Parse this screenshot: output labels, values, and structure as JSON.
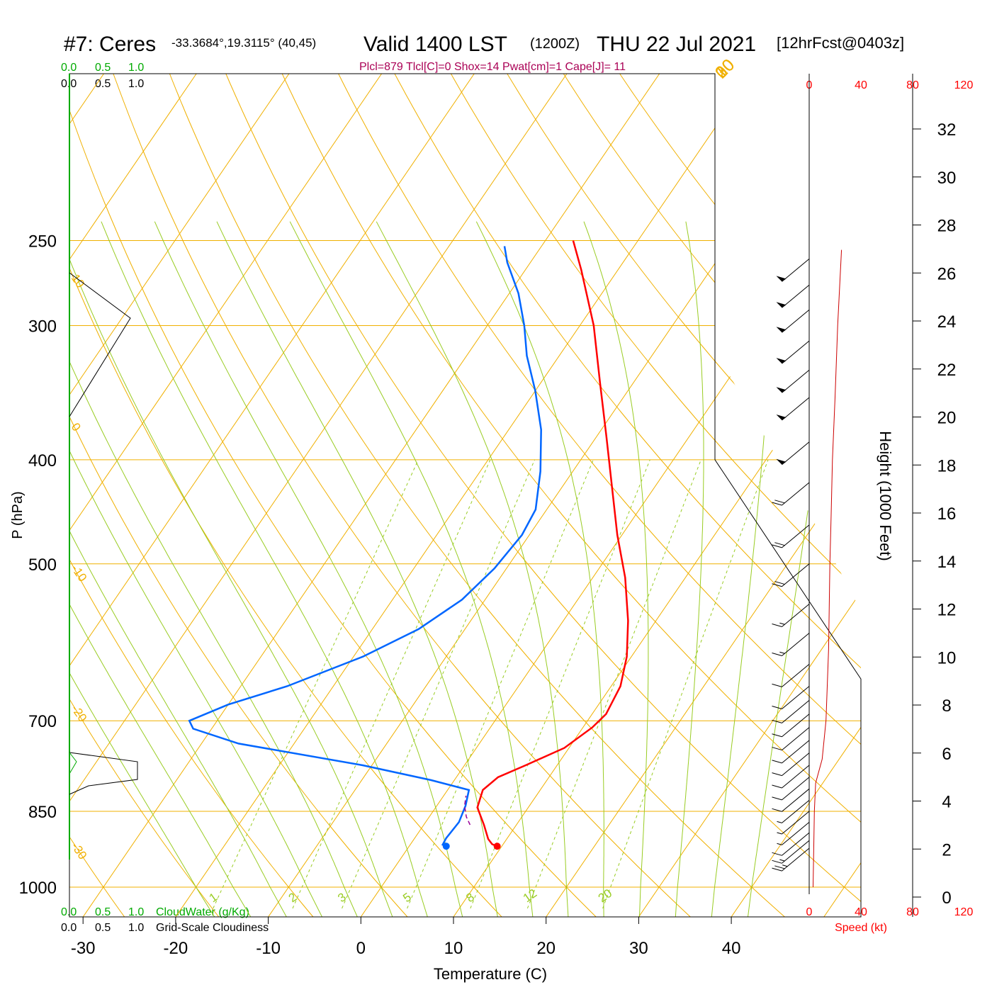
{
  "header": {
    "station": "#7: Ceres",
    "coords": "-33.3684°,19.3115° (40,45)",
    "valid": "Valid 1400 LST",
    "zulu": "(1200Z)",
    "date": "THU 22 Jul 2021",
    "forecast": "[12hrFcst@0403z]",
    "indices": "Plcl=879 Tlcl[C]=0 Shox=14 Pwat[cm]=1 Cape[J]= 11"
  },
  "labels": {
    "yaxis": "P (hPa)",
    "xaxis": "Temperature (C)",
    "height_axis": "Height (1000 Feet)",
    "speed_axis": "Speed (kt)",
    "cloudwater": "CloudWater (g/Kg)",
    "cloudiness": "Grid-Scale Cloudiness"
  },
  "scale_ticks": {
    "cloud": [
      "0.0",
      "0.5",
      "1.0"
    ],
    "speed": [
      "0",
      "40",
      "80",
      "120"
    ]
  },
  "colors": {
    "temperature": "#ff0000",
    "dewpoint": "#0066ff",
    "isotherm": "#f0b000",
    "dry_adiabat": "#f0b000",
    "moist_adiabat": "#99cc22",
    "mixing_ratio": "#99cc22",
    "cloudwater": "#00aa00",
    "parcel": "#990099",
    "indices": "#aa0055"
  },
  "chart_data": {
    "type": "line",
    "title": "#7: Ceres -33.3684°,19.3115° (40,45) Valid 1400 LST (1200Z) THU 22 Jul 2021 [12hrFcst@0403z]",
    "xlabel": "Temperature (C)",
    "ylabel": "P (hPa)",
    "x_ticks": [
      "-30",
      "-20",
      "-10",
      "0",
      "10",
      "20",
      "30",
      "40"
    ],
    "pressure_ticks": [
      "250",
      "300",
      "400",
      "500",
      "700",
      "850",
      "1000"
    ],
    "pressure_tick_values": [
      250,
      300,
      400,
      500,
      700,
      850,
      1000
    ],
    "height_ticks": [
      "0",
      "2",
      "4",
      "6",
      "8",
      "10",
      "12",
      "14",
      "16",
      "18",
      "20",
      "22",
      "24",
      "26",
      "28",
      "30",
      "32"
    ],
    "height_tick_values": [
      0,
      2,
      4,
      6,
      8,
      10,
      12,
      14,
      16,
      18,
      20,
      22,
      24,
      26,
      28,
      30,
      32
    ],
    "dry_adiabat_labels": [
      {
        "label": "10",
        "theta": 10
      },
      {
        "label": "0",
        "theta": 0
      },
      {
        "label": "-10",
        "theta": -10
      },
      {
        "label": "-20",
        "theta": -20
      },
      {
        "label": "-30",
        "theta": -30
      }
    ],
    "skew_isotherm_labels": [
      {
        "label": "0",
        "t": 0
      },
      {
        "label": "10",
        "t": 10
      },
      {
        "label": "20",
        "t": 20
      },
      {
        "label": "30",
        "t": 30
      }
    ],
    "mixing_ratio_labels": [
      "1",
      "2",
      "3",
      "5",
      "8",
      "12",
      "20"
    ],
    "series": [
      {
        "name": "Temperature",
        "points": [
          [
            9.5,
            916
          ],
          [
            8.8,
            912
          ],
          [
            8.0,
            902
          ],
          [
            6.5,
            875
          ],
          [
            4.5,
            843
          ],
          [
            3.8,
            812
          ],
          [
            4.5,
            790
          ],
          [
            6.6,
            770
          ],
          [
            9.5,
            742
          ],
          [
            11.0,
            710
          ],
          [
            11.5,
            690
          ],
          [
            11.0,
            650
          ],
          [
            9.5,
            610
          ],
          [
            7.0,
            565
          ],
          [
            3.5,
            515
          ],
          [
            -0.5,
            470
          ],
          [
            -5.0,
            420
          ],
          [
            -9.0,
            380
          ],
          [
            -13.5,
            340
          ],
          [
            -18.5,
            300
          ],
          [
            -24.0,
            266
          ],
          [
            -27.0,
            250
          ]
        ]
      },
      {
        "name": "Dewpoint",
        "points": [
          [
            4.0,
            916
          ],
          [
            3.5,
            913
          ],
          [
            3.4,
            900
          ],
          [
            3.6,
            870
          ],
          [
            3.1,
            840
          ],
          [
            2.3,
            812
          ],
          [
            -2.5,
            795
          ],
          [
            -11.0,
            770
          ],
          [
            -26.0,
            735
          ],
          [
            -32.0,
            712
          ],
          [
            -33.0,
            700
          ],
          [
            -30.0,
            676
          ],
          [
            -25.0,
            650
          ],
          [
            -19.0,
            610
          ],
          [
            -15.0,
            575
          ],
          [
            -12.5,
            540
          ],
          [
            -11.3,
            505
          ],
          [
            -10.8,
            470
          ],
          [
            -11.2,
            445
          ],
          [
            -13.5,
            410
          ],
          [
            -16.5,
            375
          ],
          [
            -20.0,
            345
          ],
          [
            -23.5,
            320
          ],
          [
            -26.0,
            300
          ],
          [
            -29.0,
            280
          ],
          [
            -32.5,
            262
          ],
          [
            -34.0,
            253
          ]
        ]
      },
      {
        "name": "Parcel",
        "points": [
          [
            5.0,
            875
          ],
          [
            4.0,
            860
          ],
          [
            3.0,
            840
          ],
          [
            2.4,
            822
          ]
        ]
      },
      {
        "name": "Wind speed",
        "points": [
          [
            3,
            1000
          ],
          [
            4,
            850
          ],
          [
            5,
            800
          ],
          [
            10,
            760
          ],
          [
            13,
            700
          ],
          [
            15,
            600
          ],
          [
            16,
            500
          ],
          [
            17,
            450
          ],
          [
            18,
            400
          ],
          [
            20,
            350
          ],
          [
            22,
            300
          ],
          [
            25,
            255
          ]
        ]
      }
    ],
    "winds": [
      {
        "p": 920,
        "spd": 25
      },
      {
        "p": 905,
        "spd": 18
      },
      {
        "p": 890,
        "spd": 10
      },
      {
        "p": 870,
        "spd": 8
      },
      {
        "p": 850,
        "spd": 8
      },
      {
        "p": 830,
        "spd": 9
      },
      {
        "p": 810,
        "spd": 10
      },
      {
        "p": 790,
        "spd": 10
      },
      {
        "p": 770,
        "spd": 10
      },
      {
        "p": 750,
        "spd": 10
      },
      {
        "p": 730,
        "spd": 10
      },
      {
        "p": 710,
        "spd": 10
      },
      {
        "p": 690,
        "spd": 10
      },
      {
        "p": 670,
        "spd": 10
      },
      {
        "p": 650,
        "spd": 10
      },
      {
        "p": 620,
        "spd": 10
      },
      {
        "p": 580,
        "spd": 15
      },
      {
        "p": 545,
        "spd": 15
      },
      {
        "p": 500,
        "spd": 20
      },
      {
        "p": 460,
        "spd": 20
      },
      {
        "p": 420,
        "spd": 20
      },
      {
        "p": 385,
        "spd": 50
      },
      {
        "p": 350,
        "spd": 50
      },
      {
        "p": 330,
        "spd": 50
      },
      {
        "p": 310,
        "spd": 50
      },
      {
        "p": 290,
        "spd": 50
      },
      {
        "p": 275,
        "spd": 50
      },
      {
        "p": 260,
        "spd": 50
      }
    ]
  }
}
